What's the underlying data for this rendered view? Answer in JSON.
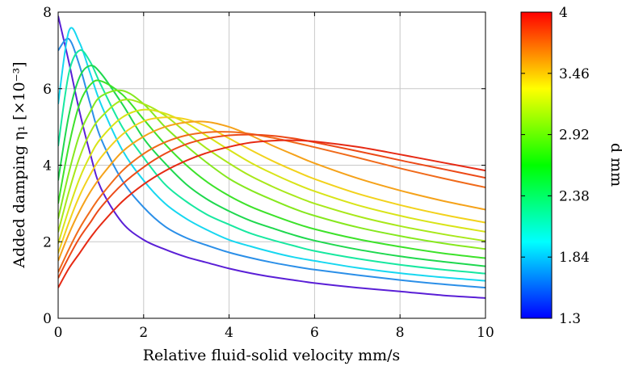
{
  "chart_data": {
    "type": "line",
    "xlabel": "Relative fluid-solid velocity mm/s",
    "ylabel": "Added damping η₁ [×10⁻³]",
    "xlim": [
      0,
      10
    ],
    "ylim": [
      0,
      8
    ],
    "xticks": [
      "0",
      "2",
      "4",
      "6",
      "8",
      "10"
    ],
    "yticks": [
      "0",
      "2",
      "4",
      "6",
      "8"
    ],
    "grid": true,
    "colorbar": {
      "label": "d mm",
      "min": 1.3,
      "max": 4,
      "ticks": [
        "1.3",
        "1.84",
        "2.38",
        "2.92",
        "3.46",
        "4"
      ],
      "colormap": "jet",
      "colors": [
        "#0000ff",
        "#00ffff",
        "#00ff00",
        "#ffff00",
        "#ff0000"
      ]
    },
    "x": [
      0,
      0.25,
      0.5,
      0.75,
      1,
      1.5,
      2,
      2.5,
      3,
      3.5,
      4,
      4.5,
      5,
      5.5,
      6,
      7,
      8,
      9,
      10
    ],
    "series": [
      {
        "d": 1.3,
        "color": "#5a1fd6",
        "values": [
          7.9,
          6.7,
          5.4,
          4.3,
          3.4,
          2.5,
          2.05,
          1.8,
          1.6,
          1.45,
          1.3,
          1.18,
          1.08,
          1.0,
          0.92,
          0.8,
          0.7,
          0.6,
          0.53
        ]
      },
      {
        "d": 1.57,
        "color": "#2b8fe8",
        "values": [
          7.0,
          7.3,
          6.6,
          5.6,
          4.7,
          3.6,
          2.9,
          2.4,
          2.1,
          1.9,
          1.72,
          1.58,
          1.46,
          1.36,
          1.27,
          1.13,
          1.0,
          0.89,
          0.8
        ]
      },
      {
        "d": 1.84,
        "color": "#17d7f0",
        "values": [
          5.6,
          7.5,
          7.2,
          6.4,
          5.6,
          4.4,
          3.6,
          3.0,
          2.6,
          2.3,
          2.05,
          1.88,
          1.73,
          1.6,
          1.5,
          1.32,
          1.18,
          1.07,
          0.98
        ]
      },
      {
        "d": 2.11,
        "color": "#18e8a0",
        "values": [
          4.5,
          6.4,
          7.0,
          6.7,
          6.1,
          5.0,
          4.2,
          3.5,
          3.05,
          2.7,
          2.45,
          2.22,
          2.05,
          1.9,
          1.76,
          1.56,
          1.4,
          1.27,
          1.17
        ]
      },
      {
        "d": 2.24,
        "color": "#1ed84e",
        "values": [
          3.6,
          5.3,
          6.3,
          6.6,
          6.4,
          5.6,
          4.7,
          4.05,
          3.5,
          3.1,
          2.8,
          2.55,
          2.36,
          2.18,
          2.03,
          1.8,
          1.62,
          1.48,
          1.36
        ]
      },
      {
        "d": 2.38,
        "color": "#3de22a",
        "values": [
          3.0,
          4.5,
          5.6,
          6.1,
          6.2,
          5.85,
          5.2,
          4.55,
          4.0,
          3.55,
          3.2,
          2.92,
          2.7,
          2.5,
          2.33,
          2.07,
          1.87,
          1.7,
          1.57
        ]
      },
      {
        "d": 2.65,
        "color": "#86e81e",
        "values": [
          2.6,
          3.8,
          4.8,
          5.4,
          5.8,
          5.95,
          5.6,
          5.0,
          4.5,
          4.05,
          3.65,
          3.35,
          3.1,
          2.87,
          2.68,
          2.38,
          2.15,
          1.96,
          1.81
        ]
      },
      {
        "d": 2.78,
        "color": "#a8e81a",
        "values": [
          2.25,
          3.3,
          4.2,
          4.85,
          5.25,
          5.7,
          5.6,
          5.3,
          4.85,
          4.42,
          4.05,
          3.72,
          3.45,
          3.21,
          3.0,
          2.67,
          2.41,
          2.2,
          2.02
        ]
      },
      {
        "d": 2.92,
        "color": "#d8e418",
        "values": [
          1.95,
          2.85,
          3.65,
          4.25,
          4.7,
          5.25,
          5.45,
          5.35,
          5.1,
          4.75,
          4.4,
          4.07,
          3.79,
          3.54,
          3.32,
          2.96,
          2.68,
          2.45,
          2.26
        ]
      },
      {
        "d": 3.19,
        "color": "#f2d21c",
        "values": [
          1.7,
          2.5,
          3.2,
          3.75,
          4.2,
          4.8,
          5.15,
          5.25,
          5.2,
          5.0,
          4.7,
          4.4,
          4.12,
          3.87,
          3.64,
          3.26,
          2.96,
          2.71,
          2.5
        ]
      },
      {
        "d": 3.46,
        "color": "#f5a21a",
        "values": [
          1.5,
          2.2,
          2.8,
          3.3,
          3.7,
          4.35,
          4.75,
          5.0,
          5.12,
          5.13,
          5.0,
          4.78,
          4.52,
          4.28,
          4.05,
          3.66,
          3.34,
          3.07,
          2.84
        ]
      },
      {
        "d": 3.73,
        "color": "#f06a1a",
        "values": [
          1.2,
          1.8,
          2.35,
          2.8,
          3.2,
          3.85,
          4.3,
          4.6,
          4.78,
          4.86,
          4.87,
          4.82,
          4.72,
          4.6,
          4.47,
          4.2,
          3.92,
          3.66,
          3.42
        ]
      },
      {
        "d": 3.86,
        "color": "#ec4a18",
        "values": [
          1.05,
          1.6,
          2.1,
          2.5,
          2.9,
          3.5,
          3.95,
          4.3,
          4.55,
          4.7,
          4.78,
          4.8,
          4.77,
          4.7,
          4.6,
          4.37,
          4.13,
          3.9,
          3.67
        ]
      },
      {
        "d": 4.0,
        "color": "#e62a14",
        "values": [
          0.8,
          1.3,
          1.7,
          2.1,
          2.45,
          3.05,
          3.5,
          3.85,
          4.12,
          4.33,
          4.48,
          4.59,
          4.64,
          4.65,
          4.62,
          4.48,
          4.28,
          4.07,
          3.86
        ]
      }
    ]
  }
}
